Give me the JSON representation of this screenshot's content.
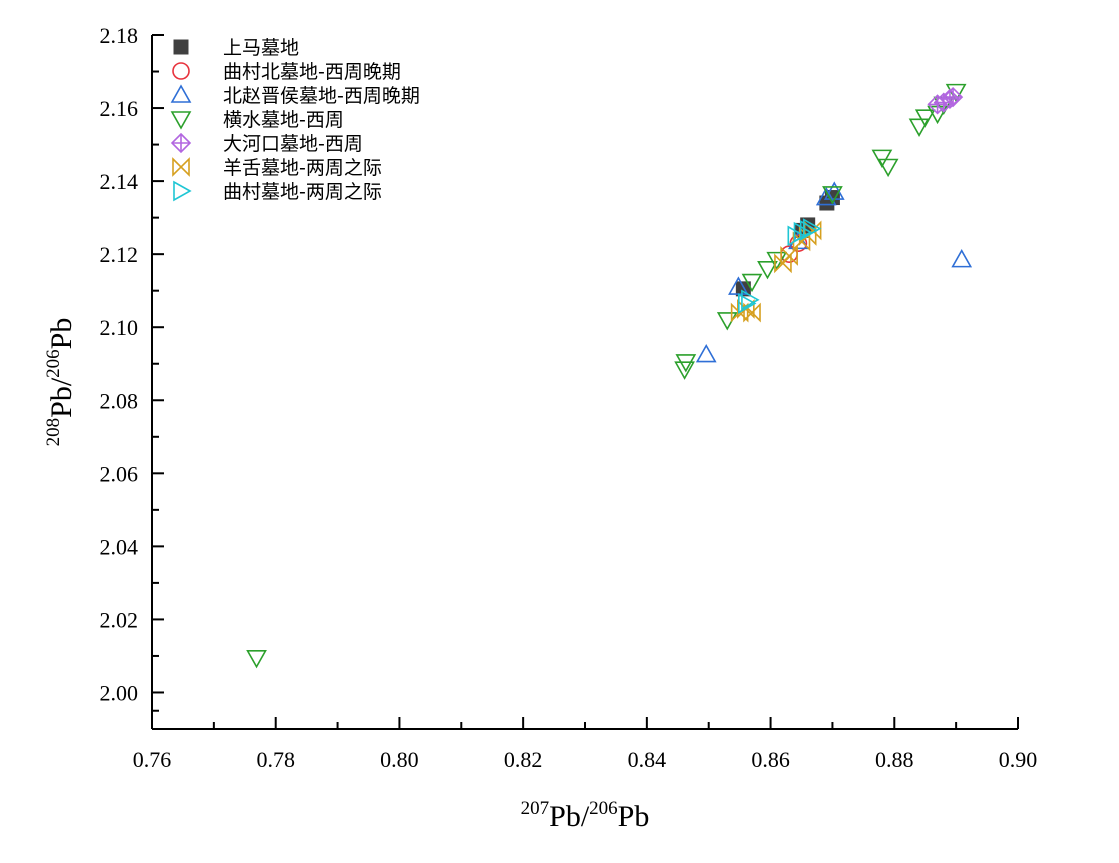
{
  "chart_data": {
    "type": "scatter",
    "title": "",
    "xlabel": {
      "sup1": "207",
      "base1": "Pb/",
      "sup2": "206",
      "base2": "Pb"
    },
    "ylabel": {
      "sup1": "208",
      "base1": "Pb/",
      "sup2": "206",
      "base2": "Pb"
    },
    "xlim": [
      0.76,
      0.9
    ],
    "ylim": [
      1.99,
      2.18
    ],
    "xticks": [
      "0.76",
      "0.78",
      "0.80",
      "0.82",
      "0.84",
      "0.86",
      "0.88",
      "0.90"
    ],
    "yticks": [
      "2.00",
      "2.02",
      "2.04",
      "2.06",
      "2.08",
      "2.10",
      "2.12",
      "2.14",
      "2.16",
      "2.18"
    ],
    "grid": false,
    "legend_position": "top-left",
    "series": [
      {
        "name": "上马墓地",
        "marker": "square-filled",
        "color": "#404040",
        "points": [
          [
            0.8556,
            2.1105
          ],
          [
            0.865,
            2.1265
          ],
          [
            0.866,
            2.128
          ],
          [
            0.8691,
            2.134
          ],
          [
            0.87,
            2.1355
          ]
        ]
      },
      {
        "name": "曲村北墓地-西周晚期",
        "marker": "circle",
        "color": "#e8323c",
        "points": [
          [
            0.863,
            2.12
          ],
          [
            0.8645,
            2.123
          ]
        ]
      },
      {
        "name": "北赵晋侯墓地-西周晚期",
        "marker": "triangle-up",
        "color": "#2f6fd6",
        "points": [
          [
            0.8496,
            2.0925
          ],
          [
            0.8548,
            2.111
          ],
          [
            0.8645,
            2.1235
          ],
          [
            0.869,
            2.1355
          ],
          [
            0.8703,
            2.137
          ],
          [
            0.8909,
            2.1185
          ]
        ]
      },
      {
        "name": "横水墓地-西周",
        "marker": "triangle-down",
        "color": "#2ca02c",
        "points": [
          [
            0.7769,
            2.0095
          ],
          [
            0.8461,
            2.0885
          ],
          [
            0.8463,
            2.0905
          ],
          [
            0.853,
            2.102
          ],
          [
            0.8595,
            2.116
          ],
          [
            0.861,
            2.1185
          ],
          [
            0.857,
            2.1125
          ],
          [
            0.878,
            2.1465
          ],
          [
            0.879,
            2.144
          ],
          [
            0.884,
            2.155
          ],
          [
            0.885,
            2.1575
          ],
          [
            0.887,
            2.1585
          ],
          [
            0.888,
            2.161
          ],
          [
            0.89,
            2.1645
          ],
          [
            0.87,
            2.1365
          ]
        ]
      },
      {
        "name": "大河口墓地-西周",
        "marker": "diamond-plus",
        "color": "#b266e0",
        "points": [
          [
            0.887,
            2.161
          ],
          [
            0.888,
            2.1615
          ],
          [
            0.889,
            2.1625
          ],
          [
            0.8895,
            2.163
          ]
        ]
      },
      {
        "name": "羊舌墓地-两周之际",
        "marker": "hourglass",
        "color": "#d6a020",
        "points": [
          [
            0.855,
            2.104
          ],
          [
            0.856,
            2.105
          ],
          [
            0.857,
            2.104
          ],
          [
            0.862,
            2.1175
          ],
          [
            0.863,
            2.1195
          ],
          [
            0.865,
            2.1235
          ],
          [
            0.866,
            2.125
          ],
          [
            0.8668,
            2.1265
          ]
        ]
      },
      {
        "name": "曲村墓地-两周之际",
        "marker": "triangle-right",
        "color": "#1fc6d4",
        "points": [
          [
            0.856,
            2.1065
          ],
          [
            0.8565,
            2.1075
          ],
          [
            0.864,
            2.125
          ],
          [
            0.865,
            2.126
          ],
          [
            0.866,
            2.1265
          ],
          [
            0.8665,
            2.127
          ]
        ]
      }
    ]
  }
}
